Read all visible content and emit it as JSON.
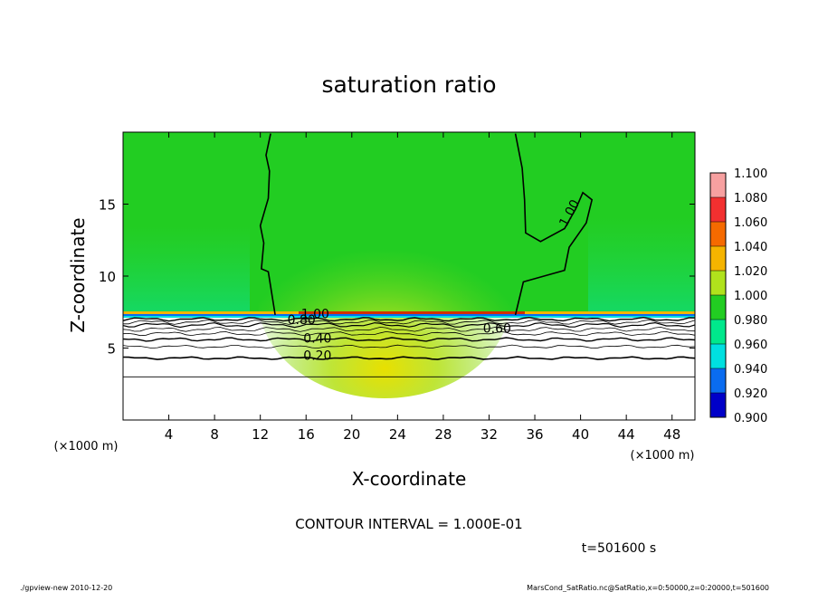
{
  "chart_data": {
    "type": "heatmap",
    "title": "saturation ratio",
    "xlabel": "X-coordinate",
    "ylabel": "Z-coordinate",
    "x_unit": "(×1000 m)",
    "y_unit": "(×1000 m)",
    "xlim": [
      0,
      50
    ],
    "ylim": [
      0,
      20
    ],
    "x_ticks": [
      "4",
      "8",
      "12",
      "16",
      "20",
      "24",
      "28",
      "32",
      "36",
      "40",
      "44",
      "48"
    ],
    "y_ticks": [
      "5",
      "10",
      "15"
    ],
    "colorbar": {
      "levels": [
        "1.100",
        "1.080",
        "1.060",
        "1.040",
        "1.020",
        "1.000",
        "0.980",
        "0.960",
        "0.940",
        "0.920",
        "0.900"
      ],
      "colors": [
        "#f7a0a0",
        "#f23030",
        "#f56a00",
        "#f5b400",
        "#b0e21c",
        "#22cd22",
        "#00e88c",
        "#00e0e0",
        "#0a6cf0",
        "#0000c8",
        "#7a00c0"
      ]
    },
    "contour_labels": [
      {
        "text": "1.00",
        "x": 16.8,
        "y": 7.2
      },
      {
        "text": "0.80",
        "x": 15.6,
        "y": 6.8
      },
      {
        "text": "0.60",
        "x": 32.7,
        "y": 6.2
      },
      {
        "text": "0.40",
        "x": 17.0,
        "y": 5.5
      },
      {
        "text": "0.20",
        "x": 17.0,
        "y": 4.3
      },
      {
        "text": "1.00",
        "x": 39.2,
        "y": 14.3
      }
    ],
    "contour_interval": "CONTOUR INTERVAL = 1.000E-01",
    "time": "t=501600  s"
  },
  "footer": {
    "left": "./gpview-new   2010-12-20",
    "right": "MarsCond_SatRatio.nc@SatRatio,x=0:50000,z=0:20000,t=501600"
  }
}
